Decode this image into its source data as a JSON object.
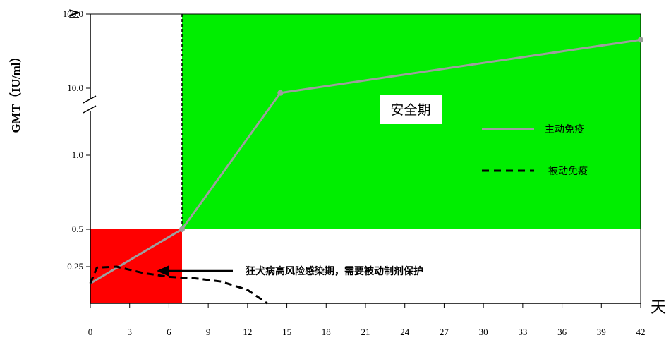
{
  "chart_data": {
    "type": "line",
    "title": "",
    "ylabel": "GMT（IU/ml）",
    "xlabel": "天",
    "y_axis_top_marker": "≥",
    "x_ticks": [
      0,
      3,
      6,
      9,
      12,
      15,
      18,
      21,
      24,
      27,
      30,
      33,
      36,
      39,
      42
    ],
    "x_tick_labels": [
      "0",
      "3",
      "6",
      "9",
      "12",
      "15",
      "18",
      "21",
      "24",
      "27",
      "30",
      "33",
      "36",
      "39",
      "42"
    ],
    "y_tick_labels": [
      "0.25",
      "0.5",
      "1.0",
      "10.0",
      "100.0"
    ],
    "y_tick_values": [
      0.25,
      0.5,
      1.0,
      10.0,
      100.0
    ],
    "y_scale": "piecewise-log (axis break between 1.0 and 10.0)",
    "xlim": [
      0,
      42
    ],
    "grid": false,
    "legend_position": "right",
    "series": [
      {
        "name": "主动免疫",
        "style": "solid",
        "color": "#9e9e9e",
        "x": [
          0,
          7,
          14.5,
          42
        ],
        "y": [
          0.12,
          0.5,
          8.5,
          45
        ]
      },
      {
        "name": "被动免疫",
        "style": "dashed",
        "color": "#000000",
        "x": [
          0,
          0.5,
          2,
          4,
          6,
          8,
          10,
          12,
          13.5
        ],
        "y": [
          0.12,
          0.24,
          0.25,
          0.19,
          0.16,
          0.15,
          0.13,
          0.09,
          0.05
        ]
      }
    ],
    "regions": [
      {
        "label": "安全期",
        "x_range": [
          7,
          42
        ],
        "y_range": [
          0.5,
          100.0
        ],
        "color": "#00ee00"
      },
      {
        "label": "",
        "x_range": [
          0,
          7
        ],
        "y_range": [
          0.05,
          0.5
        ],
        "color": "#ff0000"
      }
    ],
    "annotations": [
      {
        "text": "狂犬病高风险感染期，需要被动制剂保护",
        "arrow_to": [
          5,
          0.21
        ]
      }
    ]
  },
  "colors": {
    "safe_region": "#00ee00",
    "risk_region": "#ff0000",
    "active_line": "#9e9e9e",
    "passive_line": "#000000"
  }
}
